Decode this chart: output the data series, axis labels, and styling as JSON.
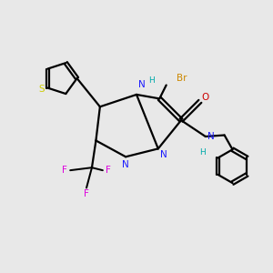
{
  "background_color": "#e8e8e8",
  "colors": {
    "C": "#000000",
    "N": "#1a1aff",
    "O": "#cc0000",
    "S": "#cccc00",
    "F": "#dd00dd",
    "Br": "#cc8800",
    "H": "#00aaaa",
    "bond": "#000000"
  },
  "figure_size": [
    3.0,
    3.0
  ],
  "dpi": 100
}
